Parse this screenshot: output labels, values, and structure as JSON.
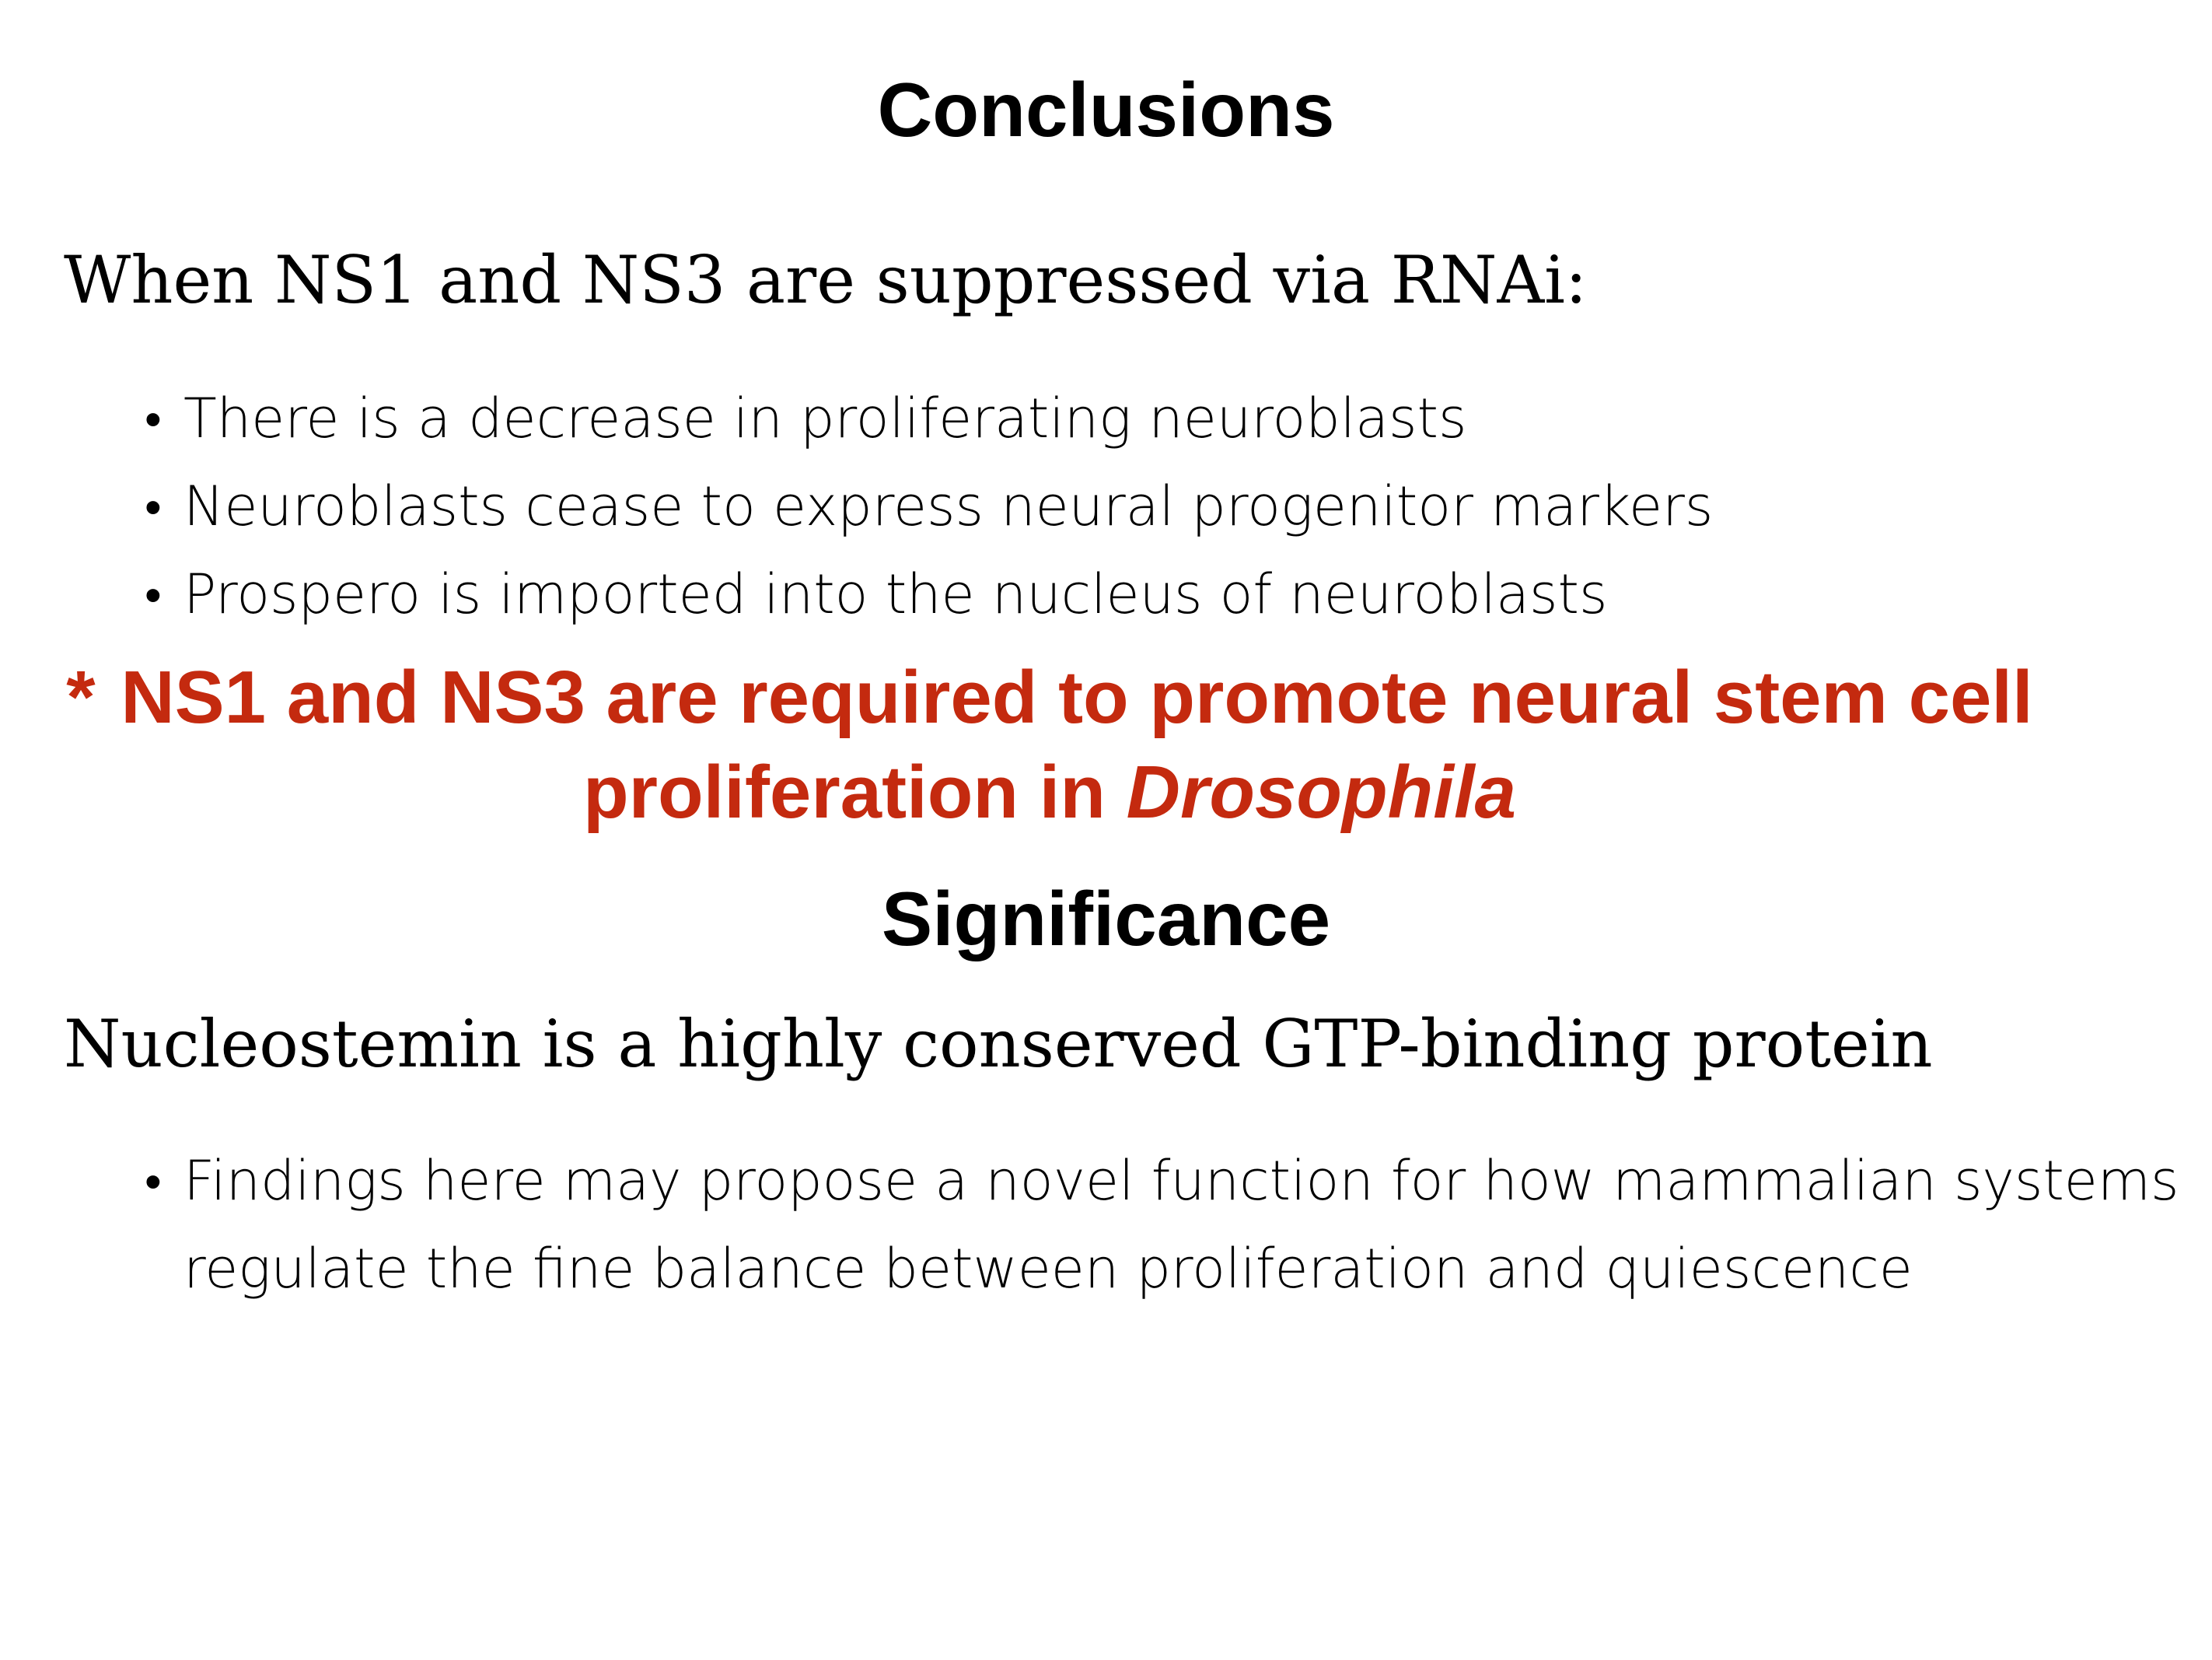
{
  "conclusions": {
    "title": "Conclusions",
    "lead": "When NS1 and NS3 are suppressed via RNAi:",
    "bullets": [
      "There is a decrease in proliferating neuroblasts",
      "Neuroblasts cease to express neural progenitor markers",
      "Prospero is imported into the nucleus of neuroblasts"
    ],
    "callout": {
      "marker": "*",
      "text": "NS1 and NS3 are required to promote neural stem cell proliferation in ",
      "italic": "Drosophila",
      "color": "#c42a0f"
    }
  },
  "significance": {
    "title": "Significance",
    "lead": "Nucleostemin is a highly conserved GTP-binding protein",
    "bullets": [
      "Findings here may propose a novel function for how mammalian systems regulate the fine balance between proliferation and quiescence"
    ]
  },
  "bullet_glyph": "•"
}
